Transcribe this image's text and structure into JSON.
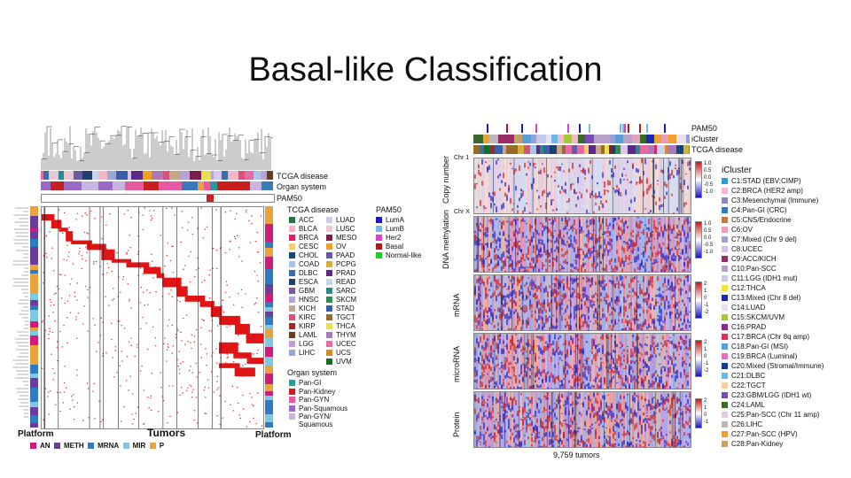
{
  "slide": {
    "title": "Basal-like Classification"
  },
  "left_panel": {
    "annotation_labels": [
      "TCGA disease",
      "Organ system",
      "PAM50"
    ],
    "axis_bottom": "Tumors",
    "platform_left": "Platform",
    "platform_right": "Platform",
    "platform_legend": [
      {
        "label": "AN",
        "color": "#d21a7a"
      },
      {
        "label": "METH",
        "color": "#6a3d9a"
      },
      {
        "label": "MRNA",
        "color": "#2e7bbf"
      },
      {
        "label": "MIR",
        "color": "#7ec8e3"
      },
      {
        "label": "P",
        "color": "#e8a33c"
      }
    ],
    "tcga_disease_header": "TCGA disease",
    "tcga_disease_col1": [
      {
        "label": "ACC",
        "color": "#1b7a3a"
      },
      {
        "label": "BLCA",
        "color": "#f4b6c2"
      },
      {
        "label": "BRCA",
        "color": "#e0206a"
      },
      {
        "label": "CESC",
        "color": "#f7d26a"
      },
      {
        "label": "CHOL",
        "color": "#124b6e"
      },
      {
        "label": "COAD",
        "color": "#a8c5e8"
      },
      {
        "label": "DLBC",
        "color": "#3b6ea5"
      },
      {
        "label": "ESCA",
        "color": "#1f3f6e"
      },
      {
        "label": "GBM",
        "color": "#7a5aa8"
      },
      {
        "label": "HNSC",
        "color": "#b5a4d6"
      },
      {
        "label": "KICH",
        "color": "#c8a58a"
      },
      {
        "label": "KIRC",
        "color": "#d6547a"
      },
      {
        "label": "KIRP",
        "color": "#9c2a2a"
      },
      {
        "label": "LAML",
        "color": "#6b3b1e"
      },
      {
        "label": "LGG",
        "color": "#c79ad1"
      },
      {
        "label": "LIHC",
        "color": "#9aa6d6"
      }
    ],
    "tcga_disease_col2": [
      {
        "label": "LUAD",
        "color": "#d9c7e8"
      },
      {
        "label": "LUSC",
        "color": "#e8c6d6"
      },
      {
        "label": "MESO",
        "color": "#7a1f4a"
      },
      {
        "label": "OV",
        "color": "#f0a020"
      },
      {
        "label": "PAAD",
        "color": "#6a5aa6"
      },
      {
        "label": "PCPG",
        "color": "#d4b036"
      },
      {
        "label": "PRAD",
        "color": "#5a2a86"
      },
      {
        "label": "READ",
        "color": "#c8d4ea"
      },
      {
        "label": "SARC",
        "color": "#2a8a8a"
      },
      {
        "label": "SKCM",
        "color": "#2e8b57"
      },
      {
        "label": "STAD",
        "color": "#3a5fa8"
      },
      {
        "label": "TGCT",
        "color": "#9a6a2a"
      },
      {
        "label": "THCA",
        "color": "#e8e04a"
      },
      {
        "label": "THYM",
        "color": "#a87ab8"
      },
      {
        "label": "UCEC",
        "color": "#e86aa0"
      },
      {
        "label": "UCS",
        "color": "#d88a2a"
      },
      {
        "label": "UVM",
        "color": "#1a6a2a"
      }
    ],
    "pam50_header": "PAM50",
    "pam50": [
      {
        "label": "LumA",
        "color": "#1a1acc"
      },
      {
        "label": "LumB",
        "color": "#7ab8e8"
      },
      {
        "label": "Her2",
        "color": "#e040c8"
      },
      {
        "label": "Basal",
        "color": "#b01a1a"
      },
      {
        "label": "Normal-like",
        "color": "#20d020"
      }
    ],
    "organ_header": "Organ system",
    "organ": [
      {
        "label": "Pan-GI",
        "color": "#2a9a9a"
      },
      {
        "label": "Pan-Kidney",
        "color": "#c82020"
      },
      {
        "label": "Pan-GYN",
        "color": "#e85aa0"
      },
      {
        "label": "Pan-Squamous",
        "color": "#9a6ac8"
      },
      {
        "label": "Pan-GYN/",
        "color": "#c8b4e0"
      }
    ],
    "organ_extra": "Squamous"
  },
  "right_panel": {
    "top_labels": [
      "PAM50",
      "iCluster",
      "TCGA disease"
    ],
    "row_labels": [
      "Copy number",
      "DNA methylation",
      "mRNA",
      "microRNA",
      "Protein"
    ],
    "chr_top": "Chr 1",
    "chr_bottom": "Chr X",
    "scales": [
      [
        "1.0",
        "0.5",
        "0.0",
        "-0.5",
        "-1.0"
      ],
      [
        "1.0",
        "0.5",
        "0.0",
        "-0.5",
        "-1.0"
      ],
      [
        "2",
        "1",
        "0",
        "-1",
        "-2"
      ],
      [
        "2",
        "1",
        "0",
        "-1",
        "-2"
      ],
      [
        "2",
        "1",
        "0",
        "-1"
      ]
    ],
    "bottom_label": "9,759 tumors",
    "icluster_header": "iCluster",
    "icluster": [
      {
        "label": "C1:STAD (EBV;CIMP)",
        "color": "#2e9ad6"
      },
      {
        "label": "C2:BRCA (HER2 amp)",
        "color": "#f4b6d2"
      },
      {
        "label": "C3:Mesenchymal (Immune)",
        "color": "#8a8ab8"
      },
      {
        "label": "C4:Pan-GI (CRC)",
        "color": "#3a7ab8"
      },
      {
        "label": "C5:CNS/Endocrine",
        "color": "#c87a3a"
      },
      {
        "label": "C6:OV",
        "color": "#e8a0b8"
      },
      {
        "label": "C7:Mixed (Chr 9 del)",
        "color": "#9aa0d6"
      },
      {
        "label": "C8:UCEC",
        "color": "#d8c0e8"
      },
      {
        "label": "C9:ACC/KICH",
        "color": "#9a2a6a"
      },
      {
        "label": "C10:Pan-SCC",
        "color": "#b8a0c8"
      },
      {
        "label": "C11:LGG (IDH1 mut)",
        "color": "#c8c8e8"
      },
      {
        "label": "C12:THCA",
        "color": "#f0e040"
      },
      {
        "label": "C13:Mixed (Chr 8 del)",
        "color": "#1a2ab8"
      },
      {
        "label": "C14:LUAD",
        "color": "#e8e0f0"
      },
      {
        "label": "C15:SKCM/UVM",
        "color": "#a8c83a"
      },
      {
        "label": "C16:PRAD",
        "color": "#8a2a8a"
      },
      {
        "label": "C17:BRCA (Chr 8q amp)",
        "color": "#e0305a"
      },
      {
        "label": "C18:Pan-GI (MSI)",
        "color": "#5aa0d6"
      },
      {
        "label": "C19:BRCA (Luminal)",
        "color": "#e870b8"
      },
      {
        "label": "C20:Mixed (Stromal/Immune)",
        "color": "#1a3a8a"
      },
      {
        "label": "C21:DLBC",
        "color": "#6ab8e8"
      },
      {
        "label": "C22:TGCT",
        "color": "#f0d0a0"
      },
      {
        "label": "C23:GBM/LGG (IDH1 wt)",
        "color": "#7a4ab8"
      },
      {
        "label": "C24:LAML",
        "color": "#3a6a2a"
      },
      {
        "label": "C25:Pan-SCC (Chr 11 amp)",
        "color": "#e8c8e0"
      },
      {
        "label": "C26:LIHC",
        "color": "#b8b8b8"
      },
      {
        "label": "C27:Pan-SCC (HPV)",
        "color": "#f0a030"
      },
      {
        "label": "C28:Pan-Kidney",
        "color": "#c8a070"
      }
    ]
  }
}
